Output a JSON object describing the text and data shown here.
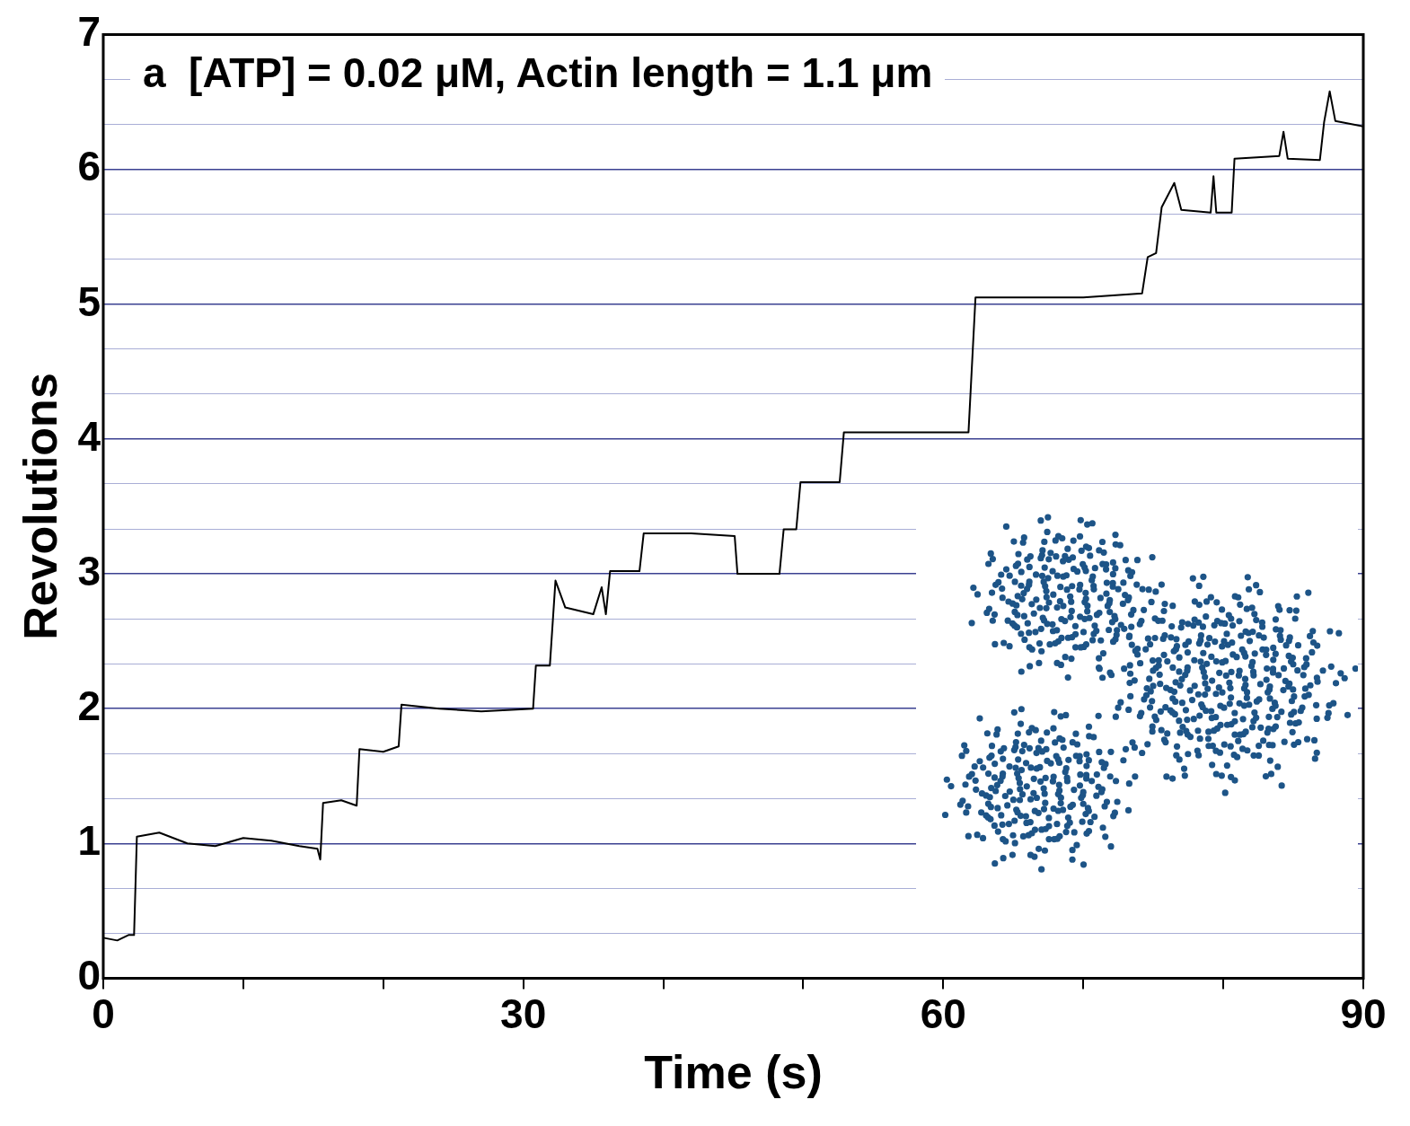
{
  "chart_data": {
    "type": "line",
    "title": "a  [ATP] = 0.02 μM, Actin length = 1.1 μm",
    "xlabel": "Time (s)",
    "ylabel": "Revolutions",
    "series": [
      {
        "color": "#000000",
        "x": [
          0,
          1.0,
          1.8,
          2.2,
          2.4,
          4,
          6,
          8,
          10,
          12,
          14,
          15.3,
          15.5,
          15.7,
          17,
          18.1,
          18.3,
          20,
          21.1,
          21.3,
          24,
          27,
          30.7,
          30.9,
          31.9,
          32.3,
          33,
          35,
          35.6,
          35.9,
          36.2,
          38.3,
          38.6,
          42,
          45.1,
          45.3,
          48.3,
          48.6,
          49.5,
          49.8,
          52.6,
          52.9,
          57,
          61.8,
          62.3,
          66,
          70,
          74.2,
          74.6,
          75.2,
          75.6,
          76.5,
          77,
          79.1,
          79.3,
          79.5,
          80.6,
          80.8,
          84,
          84.3,
          84.6,
          86.9,
          87.2,
          87.6,
          88,
          90
        ],
        "values": [
          0.3,
          0.28,
          0.32,
          0.32,
          1.05,
          1.08,
          1.0,
          0.98,
          1.04,
          1.02,
          0.98,
          0.96,
          0.88,
          1.3,
          1.32,
          1.28,
          1.7,
          1.68,
          1.72,
          2.03,
          2.0,
          1.98,
          2.0,
          2.32,
          2.32,
          2.95,
          2.75,
          2.7,
          2.9,
          2.7,
          3.02,
          3.02,
          3.3,
          3.3,
          3.28,
          3.0,
          3.0,
          3.33,
          3.33,
          3.68,
          3.68,
          4.05,
          4.05,
          4.05,
          5.05,
          5.05,
          5.05,
          5.08,
          5.35,
          5.38,
          5.72,
          5.9,
          5.7,
          5.68,
          5.95,
          5.68,
          5.68,
          6.08,
          6.1,
          6.28,
          6.08,
          6.07,
          6.35,
          6.58,
          6.36,
          6.32
        ]
      }
    ],
    "xlim": [
      0,
      90
    ],
    "ylim": [
      0,
      7
    ],
    "xticks": [
      0,
      {
        "value": 10,
        "label": null
      },
      {
        "value": 20,
        "label": null
      },
      30,
      {
        "value": 40,
        "label": null
      },
      {
        "value": 50,
        "label": null
      },
      60,
      {
        "value": 70,
        "label": null
      },
      {
        "value": 80,
        "label": null
      },
      90
    ],
    "yticks": [
      0,
      {
        "value": 0.333,
        "label": null
      },
      {
        "value": 0.667,
        "label": null
      },
      1,
      {
        "value": 1.333,
        "label": null
      },
      {
        "value": 1.667,
        "label": null
      },
      2,
      {
        "value": 2.333,
        "label": null
      },
      {
        "value": 2.667,
        "label": null
      },
      3,
      {
        "value": 3.333,
        "label": null
      },
      {
        "value": 3.667,
        "label": null
      },
      4,
      {
        "value": 4.333,
        "label": null
      },
      {
        "value": 4.667,
        "label": null
      },
      5,
      {
        "value": 5.333,
        "label": null
      },
      {
        "value": 5.667,
        "label": null
      },
      6,
      {
        "value": 6.333,
        "label": null
      },
      {
        "value": 6.667,
        "label": null
      },
      7
    ],
    "grid": "y",
    "marker": "none",
    "line_style": "solid"
  }
}
